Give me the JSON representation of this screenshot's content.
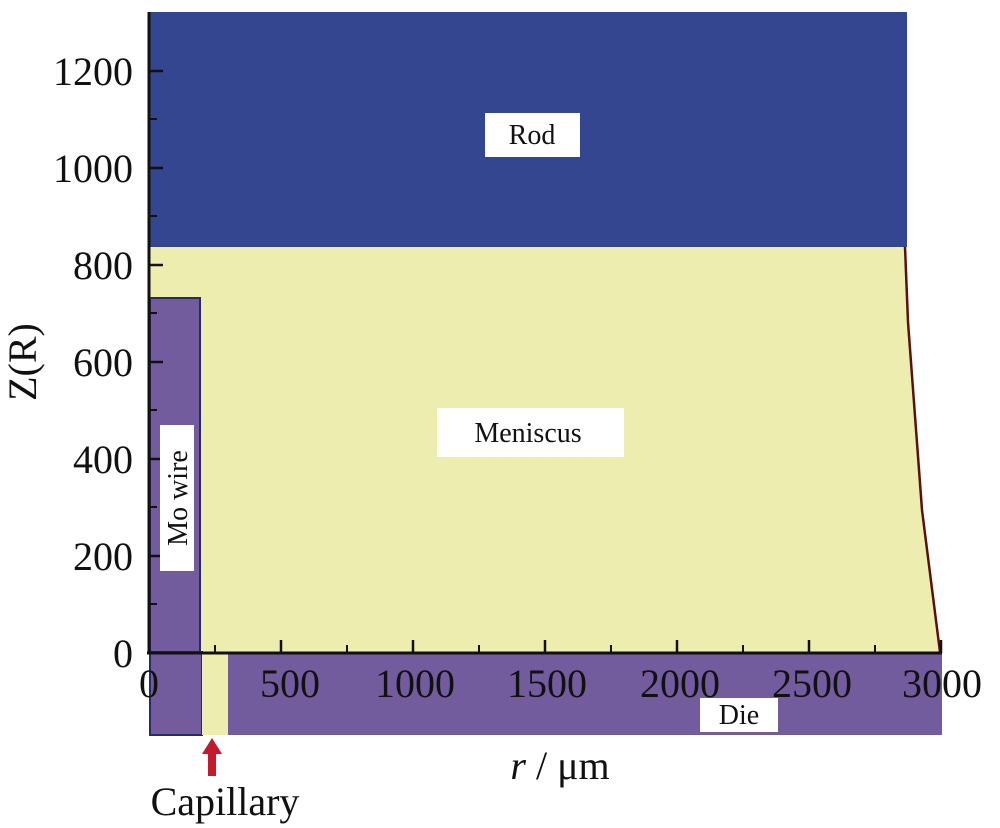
{
  "axes": {
    "x_title_italic": "r",
    "x_title_rest": " / μm",
    "y_title": "Z(R)",
    "x_ticks": [
      "0",
      "500",
      "1000",
      "1500",
      "2000",
      "2500",
      "3000"
    ],
    "y_ticks": [
      "0",
      "200",
      "400",
      "600",
      "800",
      "1000",
      "1200"
    ]
  },
  "regions": {
    "rod": "Rod",
    "meniscus": "Meniscus",
    "mo_wire": "Mo wire",
    "die": "Die",
    "capillary": "Capillary"
  },
  "colors": {
    "rod": "#33468f",
    "meniscus": "#ededb0",
    "mo_wire": "#735c9e",
    "die": "#735c9e",
    "capillary_arrow": "#c41a2b",
    "meniscus_edge": "#5a1010"
  }
}
